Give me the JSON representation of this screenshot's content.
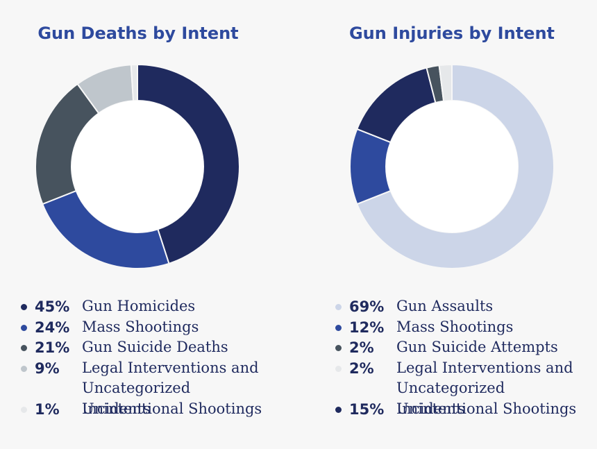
{
  "chart_data": [
    {
      "type": "pie",
      "title": "Gun Deaths by Intent",
      "slices": [
        {
          "pct_label": "45%",
          "label": "Gun Homicides",
          "value": 45,
          "color": "#1f2a5e"
        },
        {
          "pct_label": "24%",
          "label": "Mass Shootings",
          "value": 24,
          "color": "#2e4a9e"
        },
        {
          "pct_label": "21%",
          "label": "Gun Suicide Deaths",
          "value": 21,
          "color": "#47535e"
        },
        {
          "pct_label": "9%",
          "label": "Legal Interventions and Uncategorized Incidents",
          "value": 9,
          "color": "#bfc6cc"
        },
        {
          "pct_label": "1%",
          "label": "Unintentional Shootings",
          "value": 1,
          "color": "#e6e8ea"
        }
      ]
    },
    {
      "type": "pie",
      "title": "Gun Injuries by Intent",
      "slices": [
        {
          "pct_label": "69%",
          "label": "Gun Assaults",
          "value": 69,
          "color": "#ccd5e8"
        },
        {
          "pct_label": "12%",
          "label": "Mass Shootings",
          "value": 12,
          "color": "#2e4a9e"
        },
        {
          "pct_label": "2%",
          "label": "Gun Suicide Attempts",
          "value": 2,
          "color": "#47535e"
        },
        {
          "pct_label": "2%",
          "label": "Legal Interventions and Uncategorized Incidents",
          "value": 2,
          "color": "#e6e8ea"
        },
        {
          "pct_label": "15%",
          "label": "Unintentional Shootings",
          "value": 15,
          "color": "#1f2a5e"
        }
      ],
      "slice_order_clockwise": [
        0,
        1,
        4,
        2,
        3
      ]
    }
  ]
}
